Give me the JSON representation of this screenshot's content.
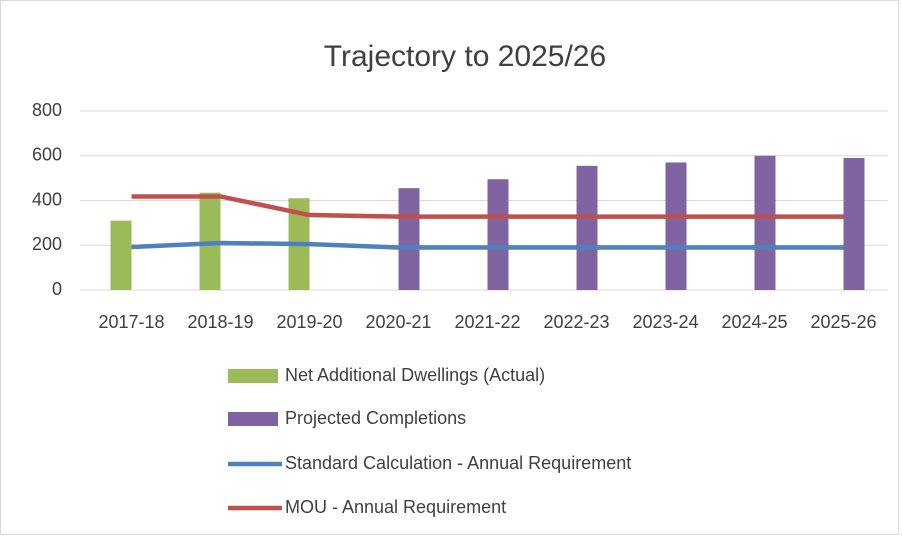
{
  "chart_data": {
    "type": "bar",
    "title": "Trajectory to 2025/26",
    "categories": [
      "2017-18",
      "2018-19",
      "2019-20",
      "2020-21",
      "2021-22",
      "2022-23",
      "2023-24",
      "2024-25",
      "2025-26"
    ],
    "series": [
      {
        "name": "Net Additional Dwellings (Actual)",
        "type": "bar",
        "color": "#9bbb59",
        "values": [
          310,
          435,
          410,
          null,
          null,
          null,
          null,
          null,
          null
        ]
      },
      {
        "name": "Projected Completions",
        "type": "bar",
        "color": "#8064a2",
        "values": [
          null,
          null,
          null,
          455,
          495,
          555,
          570,
          600,
          590
        ]
      },
      {
        "name": "Standard Calculation - Annual Requirement",
        "type": "line",
        "color": "#4f81bd",
        "values": [
          192,
          210,
          205,
          190,
          190,
          190,
          190,
          190,
          190
        ]
      },
      {
        "name": "MOU - Annual Requirement",
        "type": "line",
        "color": "#c0504d",
        "values": [
          418,
          418,
          335,
          328,
          328,
          328,
          328,
          328,
          328
        ]
      }
    ],
    "ylim": [
      0,
      800
    ],
    "yticks": [
      0,
      200,
      400,
      600,
      800
    ],
    "grid": true,
    "legend": "bottom"
  }
}
